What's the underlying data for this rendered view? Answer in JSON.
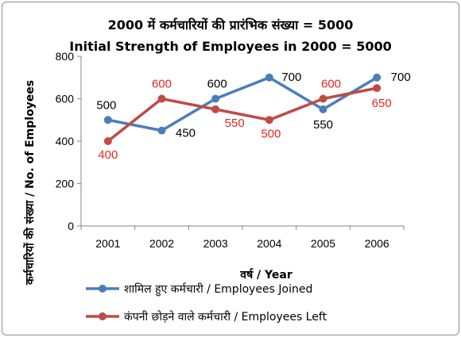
{
  "chart_data": {
    "type": "line",
    "title_line1": "2000 में कर्मचारियों की प्रारंभिक संख्या = 5000",
    "title_line2": "Initial Strength of Employees in 2000 = 5000",
    "xlabel": "वर्ष / Year",
    "ylabel": "कर्मचारियों की संख्या / No. of Employees",
    "categories": [
      "2001",
      "2002",
      "2003",
      "2004",
      "2005",
      "2006"
    ],
    "ylim": [
      0,
      800
    ],
    "yticks": [
      0,
      200,
      400,
      600,
      800
    ],
    "grid": false,
    "legend_position": "bottom",
    "series": [
      {
        "name": "शामिल हुए कर्मचारी  /  Employees Joined",
        "color": "#4a7ebb",
        "values": [
          500,
          450,
          600,
          700,
          550,
          700
        ],
        "label_color": "#000000"
      },
      {
        "name": "कंपनी छोड़ने वाले कर्मचारी  /  Employees Left",
        "color": "#be4b48",
        "values": [
          400,
          600,
          550,
          500,
          600,
          650
        ],
        "label_color": "#e8251f"
      }
    ]
  }
}
